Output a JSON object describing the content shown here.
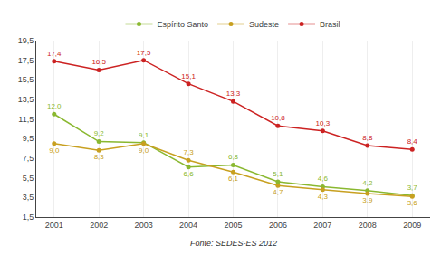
{
  "chart_data": {
    "type": "line",
    "x": [
      2001,
      2002,
      2003,
      2004,
      2005,
      2006,
      2007,
      2008,
      2009
    ],
    "series": [
      {
        "name": "Espírito Santo",
        "color": "#8ab830",
        "marker": "circle",
        "values": [
          12.0,
          9.2,
          9.1,
          6.6,
          6.8,
          5.1,
          4.6,
          4.2,
          3.7
        ],
        "value_labels": [
          "12,0",
          "9,2",
          "9,1",
          "6,6",
          "6,8",
          "5,1",
          "4,6",
          "4,2",
          "3,7"
        ]
      },
      {
        "name": "Sudeste",
        "color": "#c8a020",
        "marker": "circle",
        "values": [
          9.0,
          8.3,
          9.0,
          7.3,
          6.1,
          4.7,
          4.3,
          3.9,
          3.6
        ],
        "value_labels": [
          "9,0",
          "8,3",
          "9,0",
          "7,3",
          "6,1",
          "4,7",
          "4,3",
          "3,9",
          "3,6"
        ]
      },
      {
        "name": "Brasil",
        "color": "#cc2222",
        "marker": "circle",
        "values": [
          17.4,
          16.5,
          17.5,
          15.1,
          13.3,
          10.8,
          10.3,
          8.8,
          8.4
        ],
        "value_labels": [
          "17,4",
          "16,5",
          "17,5",
          "15,1",
          "13,3",
          "10,8",
          "10,3",
          "8,8",
          "8,4"
        ]
      }
    ],
    "xlim": [
      2000.6,
      2009.4
    ],
    "xticks": [
      2001,
      2002,
      2003,
      2004,
      2005,
      2006,
      2007,
      2008,
      2009
    ],
    "ylim": [
      1.5,
      19.5
    ],
    "yticks": [
      {
        "value": 1.5,
        "label": "1,5"
      },
      {
        "value": 3.5,
        "label": "3,5"
      },
      {
        "value": 5.5,
        "label": "5,5"
      },
      {
        "value": 7.5,
        "label": "7,5"
      },
      {
        "value": 9.5,
        "label": "9,5"
      },
      {
        "value": 11.5,
        "label": "11,5"
      },
      {
        "value": 13.5,
        "label": "13,5"
      },
      {
        "value": 15.5,
        "label": "15,5"
      },
      {
        "value": 17.5,
        "label": "17,5"
      },
      {
        "value": 19.5,
        "label": "19,5"
      }
    ],
    "grid": "x",
    "legend": "top",
    "data_labels": true,
    "annotations": [
      "Fonte: SEDES-ES 2012"
    ]
  }
}
